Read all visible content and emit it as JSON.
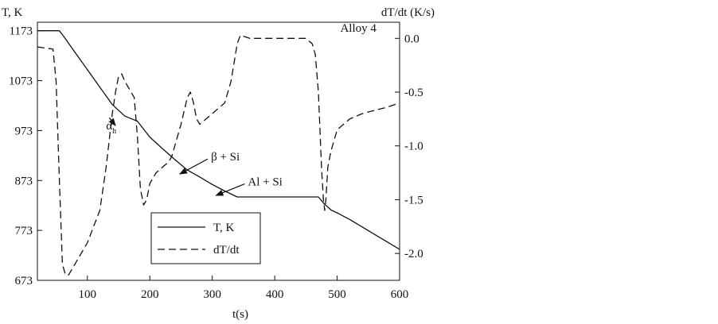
{
  "chart_data": {
    "type": "line",
    "title": "",
    "xlabel": "t(s)",
    "ylabel_left": "T, K",
    "ylabel_right": "dT/dt (K/s)",
    "xlim": [
      20,
      600
    ],
    "ylim_left": [
      673,
      1190
    ],
    "ylim_right": [
      -2.25,
      0.15
    ],
    "x_ticks": [
      100,
      200,
      300,
      400,
      500,
      600
    ],
    "y_ticks_left": [
      673,
      773,
      873,
      973,
      1073,
      1173
    ],
    "y_ticks_right": [
      0.0,
      -0.5,
      -1.0,
      -1.5,
      -2.0
    ],
    "y_tick_labels_right": [
      "0.0",
      "-0.5",
      "-1.0",
      "-1.5",
      "-2.0"
    ],
    "grid": false,
    "legend": {
      "placement": "lower-center",
      "entries": [
        "T, K",
        "dT/dt"
      ]
    },
    "annotations": [
      {
        "text": "Alloy 4",
        "x": 505,
        "y": 1171
      },
      {
        "text": "α",
        "subscript": "h",
        "x": 130,
        "y": 975,
        "arrow_to": [
          145,
          983
        ]
      },
      {
        "text": "β + Si",
        "x": 298,
        "y": 913,
        "arrow_to": [
          248,
          886
        ]
      },
      {
        "text": "Al + Si",
        "x": 357,
        "y": 863,
        "arrow_to": [
          306,
          843
        ]
      }
    ],
    "series": [
      {
        "name": "T, K",
        "axis": "left",
        "style": "solid",
        "x": [
          20,
          55,
          62,
          80,
          100,
          120,
          140,
          160,
          180,
          200,
          220,
          240,
          260,
          280,
          300,
          320,
          340,
          350,
          400,
          450,
          470,
          480,
          485,
          490,
          500,
          520,
          540,
          560,
          580,
          600
        ],
        "y": [
          1173,
          1173,
          1162,
          1130,
          1095,
          1060,
          1025,
          1002,
          992,
          960,
          937,
          915,
          894,
          880,
          865,
          852,
          840,
          840,
          840,
          840,
          840,
          825,
          820,
          814,
          808,
          795,
          780,
          765,
          750,
          735
        ]
      },
      {
        "name": "dT/dt",
        "axis": "right",
        "style": "dashed",
        "x": [
          20,
          45,
          50,
          55,
          60,
          65,
          70,
          80,
          100,
          120,
          130,
          140,
          145,
          150,
          155,
          160,
          170,
          175,
          180,
          185,
          190,
          195,
          200,
          210,
          220,
          230,
          235,
          240,
          250,
          260,
          265,
          270,
          275,
          280,
          290,
          300,
          310,
          320,
          330,
          340,
          345,
          350,
          360,
          400,
          440,
          450,
          460,
          465,
          470,
          475,
          478,
          480,
          482,
          485,
          490,
          500,
          520,
          540,
          560,
          580,
          600
        ],
        "y": [
          -0.08,
          -0.1,
          -0.4,
          -1.3,
          -2.1,
          -2.2,
          -2.2,
          -2.1,
          -1.9,
          -1.6,
          -1.2,
          -0.7,
          -0.5,
          -0.35,
          -0.33,
          -0.4,
          -0.5,
          -0.55,
          -0.9,
          -1.4,
          -1.55,
          -1.5,
          -1.35,
          -1.25,
          -1.2,
          -1.15,
          -1.1,
          -1.0,
          -0.8,
          -0.55,
          -0.5,
          -0.6,
          -0.75,
          -0.8,
          -0.75,
          -0.7,
          -0.65,
          -0.6,
          -0.4,
          -0.05,
          0.03,
          0.02,
          0.0,
          0.0,
          0.0,
          0.0,
          -0.05,
          -0.15,
          -0.5,
          -1.2,
          -1.5,
          -1.6,
          -1.5,
          -1.2,
          -1.05,
          -0.85,
          -0.75,
          -0.7,
          -0.67,
          -0.64,
          -0.6
        ]
      }
    ]
  }
}
